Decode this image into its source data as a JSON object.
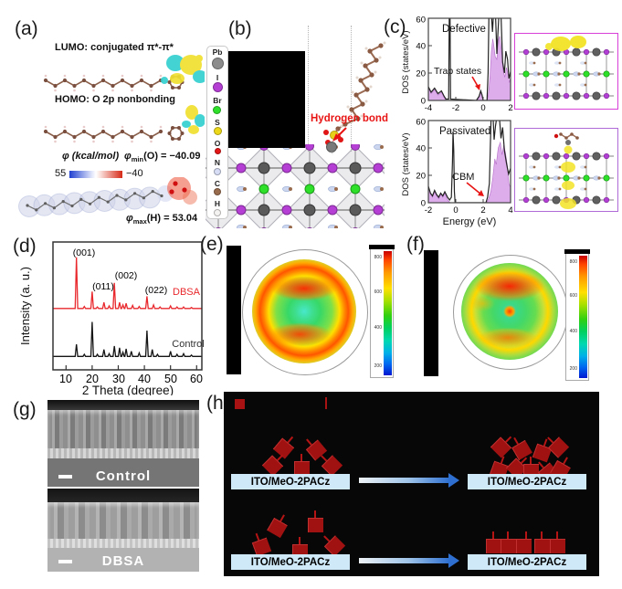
{
  "panels": {
    "a": {
      "label": "(a)",
      "lumo_text": "LUMO: conjugated π*-π*",
      "homo_text": "HOMO: O 2p nonbonding",
      "esp_scale_label": "φ (kcal/mol)",
      "esp_scale_left": "55",
      "esp_scale_right": "−40",
      "phi_min_prefix": "φ",
      "phi_min_sub": "min",
      "phi_min_rest": "(O) = −40.09",
      "phi_max_prefix": "φ",
      "phi_max_sub": "max",
      "phi_max_rest": "(H) = 53.04"
    },
    "b": {
      "label": "(b)",
      "hydrogen_bond": "Hydrogen bond",
      "legend": [
        {
          "symbol": "Pb",
          "color": "#8c8c8c"
        },
        {
          "symbol": "I",
          "color": "#b53fd4"
        },
        {
          "symbol": "Br",
          "color": "#2fe02a"
        },
        {
          "symbol": "S",
          "color": "#ecd819"
        },
        {
          "symbol": "O",
          "color": "#e51616"
        },
        {
          "symbol": "N",
          "color": "#d6ddf4"
        },
        {
          "symbol": "C",
          "color": "#9a6c4e"
        },
        {
          "symbol": "H",
          "color": "#f5f3f1"
        }
      ]
    },
    "c": {
      "label": "(c)",
      "ylabel": "DOS (states/eV)",
      "xlabel": "Energy (eV)",
      "defective": {
        "title": "Defective",
        "annotation": "Trap states",
        "xticks": [
          -4,
          -2,
          0,
          2
        ],
        "yticks": [
          0,
          20,
          40,
          60
        ]
      },
      "passivated": {
        "title": "Passivated",
        "annotation": "CBM",
        "xticks": [
          -2,
          0,
          2,
          4
        ],
        "yticks": [
          0,
          20,
          40,
          60
        ]
      }
    },
    "d": {
      "label": "(d)",
      "xlabel": "2 Theta (degree)",
      "ylabel": "Intensity (a. u.)",
      "xticks": [
        10,
        20,
        30,
        40,
        50,
        60
      ],
      "series1": "DBSA",
      "series2": "Control",
      "peak_labels": [
        "(001)",
        "(011)",
        "(002)",
        "(022)"
      ]
    },
    "e": {
      "label": "(e)",
      "colorbar_ticks": [
        "800",
        "600",
        "400",
        "200"
      ]
    },
    "f": {
      "label": "(f)",
      "colorbar_ticks": [
        "800",
        "600",
        "400",
        "200"
      ]
    },
    "g": {
      "label": "(g)",
      "top_caption": "Control",
      "bottom_caption": "DBSA"
    },
    "h": {
      "label": "(h)",
      "box_label": "ITO/MeO-2PACz"
    }
  },
  "colors": {
    "xrd_dbsa": "#e8282c",
    "xrd_control": "#151515",
    "dos_fill": "#d9a3e8",
    "dos_line": "#222222",
    "annotation_red": "#e81414",
    "ito_box_bg": "#cfe9f8",
    "schematic_red": "#a01111",
    "thumb_border_top": "#d83fd8",
    "thumb_border_bottom": "#b06ad8"
  },
  "chart_data": [
    {
      "id": "dos-defective",
      "type": "area",
      "title": "Defective",
      "ylabel": "DOS (states/eV)",
      "xlabel": "Energy (eV)",
      "xlim": [
        -4,
        2
      ],
      "ylim": [
        0,
        60
      ],
      "xticks": [
        -4,
        -2,
        0,
        2
      ],
      "yticks": [
        0,
        20,
        40,
        60
      ],
      "annotations": [
        "Trap states near -0.15 eV"
      ],
      "series": [
        {
          "name": "projected DOS",
          "color": "#d9a3e8",
          "fill": true,
          "points": [
            [
              -4,
              9
            ],
            [
              -3.8,
              5
            ],
            [
              -3.55,
              8
            ],
            [
              -3.3,
              4
            ],
            [
              -3.05,
              6
            ],
            [
              -2.85,
              2
            ],
            [
              -2.7,
              0
            ],
            [
              -0.45,
              0
            ],
            [
              -0.3,
              2
            ],
            [
              -0.18,
              6
            ],
            [
              -0.08,
              3
            ],
            [
              0,
              0
            ],
            [
              0.3,
              0
            ],
            [
              0.4,
              6
            ],
            [
              0.5,
              18
            ],
            [
              0.6,
              36
            ],
            [
              0.7,
              45
            ],
            [
              0.78,
              40
            ],
            [
              0.88,
              32
            ],
            [
              1,
              30
            ],
            [
              1.1,
              44
            ],
            [
              1.2,
              47
            ],
            [
              1.32,
              38
            ],
            [
              1.45,
              22
            ],
            [
              1.58,
              17
            ],
            [
              1.7,
              24
            ],
            [
              1.82,
              19
            ],
            [
              1.92,
              13
            ],
            [
              2,
              17
            ]
          ]
        },
        {
          "name": "total DOS",
          "color": "#222222",
          "fill": false,
          "points": [
            [
              -4,
              10
            ],
            [
              -3.8,
              6
            ],
            [
              -3.55,
              9
            ],
            [
              -3.3,
              5
            ],
            [
              -3.05,
              7
            ],
            [
              -2.85,
              3
            ],
            [
              -2.72,
              1
            ],
            [
              -2.52,
              1
            ],
            [
              -2.47,
              63
            ],
            [
              -2.42,
              63
            ],
            [
              -2.38,
              1
            ],
            [
              -0.5,
              0
            ],
            [
              -0.3,
              3
            ],
            [
              -0.18,
              7
            ],
            [
              -0.08,
              4
            ],
            [
              0,
              0
            ],
            [
              0.28,
              0
            ],
            [
              0.36,
              20
            ],
            [
              0.42,
              63
            ],
            [
              0.6,
              63
            ],
            [
              0.68,
              50
            ],
            [
              0.75,
              63
            ],
            [
              0.9,
              63
            ],
            [
              1,
              34
            ],
            [
              1.08,
              50
            ],
            [
              1.15,
              63
            ],
            [
              1.3,
              63
            ],
            [
              1.42,
              28
            ],
            [
              1.55,
              20
            ],
            [
              1.65,
              36
            ],
            [
              1.78,
              30
            ],
            [
              1.88,
              16
            ],
            [
              2,
              21
            ]
          ]
        }
      ]
    },
    {
      "id": "dos-passivated",
      "type": "area",
      "title": "Passivated",
      "ylabel": "DOS (states/eV)",
      "xlabel": "Energy (eV)",
      "xlim": [
        -2,
        4
      ],
      "ylim": [
        0,
        60
      ],
      "xticks": [
        -2,
        0,
        2,
        4
      ],
      "yticks": [
        0,
        20,
        40,
        60
      ],
      "annotations": [
        "CBM near 2.3 eV"
      ],
      "series": [
        {
          "name": "projected DOS",
          "color": "#d9a3e8",
          "fill": true,
          "points": [
            [
              -2,
              11
            ],
            [
              -1.85,
              6
            ],
            [
              -1.7,
              4
            ],
            [
              -1.55,
              8
            ],
            [
              -1.4,
              5
            ],
            [
              -1.25,
              3
            ],
            [
              -1.1,
              6
            ],
            [
              -0.95,
              4
            ],
            [
              -0.8,
              7
            ],
            [
              -0.65,
              3
            ],
            [
              -0.5,
              1
            ],
            [
              -0.4,
              0
            ],
            [
              2.25,
              0
            ],
            [
              2.4,
              3
            ],
            [
              2.55,
              8
            ],
            [
              2.7,
              18
            ],
            [
              2.85,
              32
            ],
            [
              2.95,
              28
            ],
            [
              3.1,
              40
            ],
            [
              3.25,
              44
            ],
            [
              3.38,
              35
            ],
            [
              3.5,
              42
            ],
            [
              3.62,
              37
            ],
            [
              3.75,
              28
            ],
            [
              3.88,
              14
            ],
            [
              4,
              11
            ]
          ]
        },
        {
          "name": "total DOS",
          "color": "#222222",
          "fill": false,
          "points": [
            [
              -2,
              12
            ],
            [
              -1.85,
              7
            ],
            [
              -1.7,
              5
            ],
            [
              -1.55,
              9
            ],
            [
              -1.4,
              6
            ],
            [
              -1.25,
              4
            ],
            [
              -1.1,
              7
            ],
            [
              -0.95,
              5
            ],
            [
              -0.8,
              8
            ],
            [
              -0.6,
              4
            ],
            [
              -0.45,
              2
            ],
            [
              -0.32,
              4
            ],
            [
              -0.24,
              30
            ],
            [
              -0.2,
              52
            ],
            [
              -0.15,
              38
            ],
            [
              -0.1,
              8
            ],
            [
              -0.05,
              0
            ],
            [
              2.2,
              0
            ],
            [
              2.32,
              4
            ],
            [
              2.45,
              14
            ],
            [
              2.52,
              40
            ],
            [
              2.58,
              63
            ],
            [
              2.72,
              63
            ],
            [
              2.8,
              46
            ],
            [
              2.9,
              56
            ],
            [
              3,
              63
            ],
            [
              3.18,
              63
            ],
            [
              3.3,
              47
            ],
            [
              3.42,
              55
            ],
            [
              3.55,
              38
            ],
            [
              3.7,
              29
            ],
            [
              3.85,
              21
            ],
            [
              4,
              25
            ]
          ]
        }
      ]
    },
    {
      "id": "xrd",
      "type": "line",
      "title": "",
      "xlabel": "2 Theta (degree)",
      "ylabel": "Intensity (a. u.)",
      "xlim": [
        5,
        62
      ],
      "xticks": [
        10,
        20,
        30,
        40,
        50,
        60
      ],
      "peak_labels": [
        {
          "text": "(001)",
          "two_theta": 14
        },
        {
          "text": "(011)",
          "two_theta": 20
        },
        {
          "text": "(002)",
          "two_theta": 28.5
        },
        {
          "text": "(022)",
          "two_theta": 41
        }
      ],
      "series": [
        {
          "name": "DBSA",
          "color": "#e8282c",
          "peaks": [
            [
              14,
              1.0
            ],
            [
              17,
              0.04
            ],
            [
              20,
              0.33
            ],
            [
              22,
              0.03
            ],
            [
              24.5,
              0.12
            ],
            [
              26.5,
              0.05
            ],
            [
              28.5,
              0.5
            ],
            [
              30.5,
              0.12
            ],
            [
              31.8,
              0.07
            ],
            [
              33,
              0.1
            ],
            [
              35.5,
              0.06
            ],
            [
              38,
              0.04
            ],
            [
              41,
              0.24
            ],
            [
              43.5,
              0.07
            ],
            [
              46,
              0.03
            ],
            [
              50,
              0.05
            ],
            [
              52.5,
              0.03
            ],
            [
              55,
              0.03
            ],
            [
              58,
              0.02
            ]
          ]
        },
        {
          "name": "Control",
          "color": "#151515",
          "peaks": [
            [
              14,
              0.35
            ],
            [
              17,
              0.06
            ],
            [
              20,
              1.0
            ],
            [
              22,
              0.06
            ],
            [
              24.5,
              0.2
            ],
            [
              26.5,
              0.08
            ],
            [
              28.5,
              0.3
            ],
            [
              30.5,
              0.25
            ],
            [
              31.8,
              0.12
            ],
            [
              33,
              0.22
            ],
            [
              35,
              0.15
            ],
            [
              38,
              0.1
            ],
            [
              41,
              0.75
            ],
            [
              43,
              0.2
            ],
            [
              45,
              0.06
            ],
            [
              50,
              0.15
            ],
            [
              52.5,
              0.06
            ],
            [
              55,
              0.08
            ],
            [
              58,
              0.04
            ]
          ]
        }
      ]
    },
    {
      "id": "pole-e",
      "type": "heatmap",
      "colorbar_ticks": [
        800,
        600,
        400,
        200
      ],
      "range": [
        200,
        800
      ],
      "pattern": "full high-intensity ring (~800) at mid radius, cyan center, green background"
    },
    {
      "id": "pole-f",
      "type": "heatmap",
      "colorbar_ticks": [
        800,
        600,
        400,
        200
      ],
      "range": [
        200,
        800
      ],
      "pattern": "broken ring with strong arc at top, hot spot at center, green background"
    }
  ]
}
